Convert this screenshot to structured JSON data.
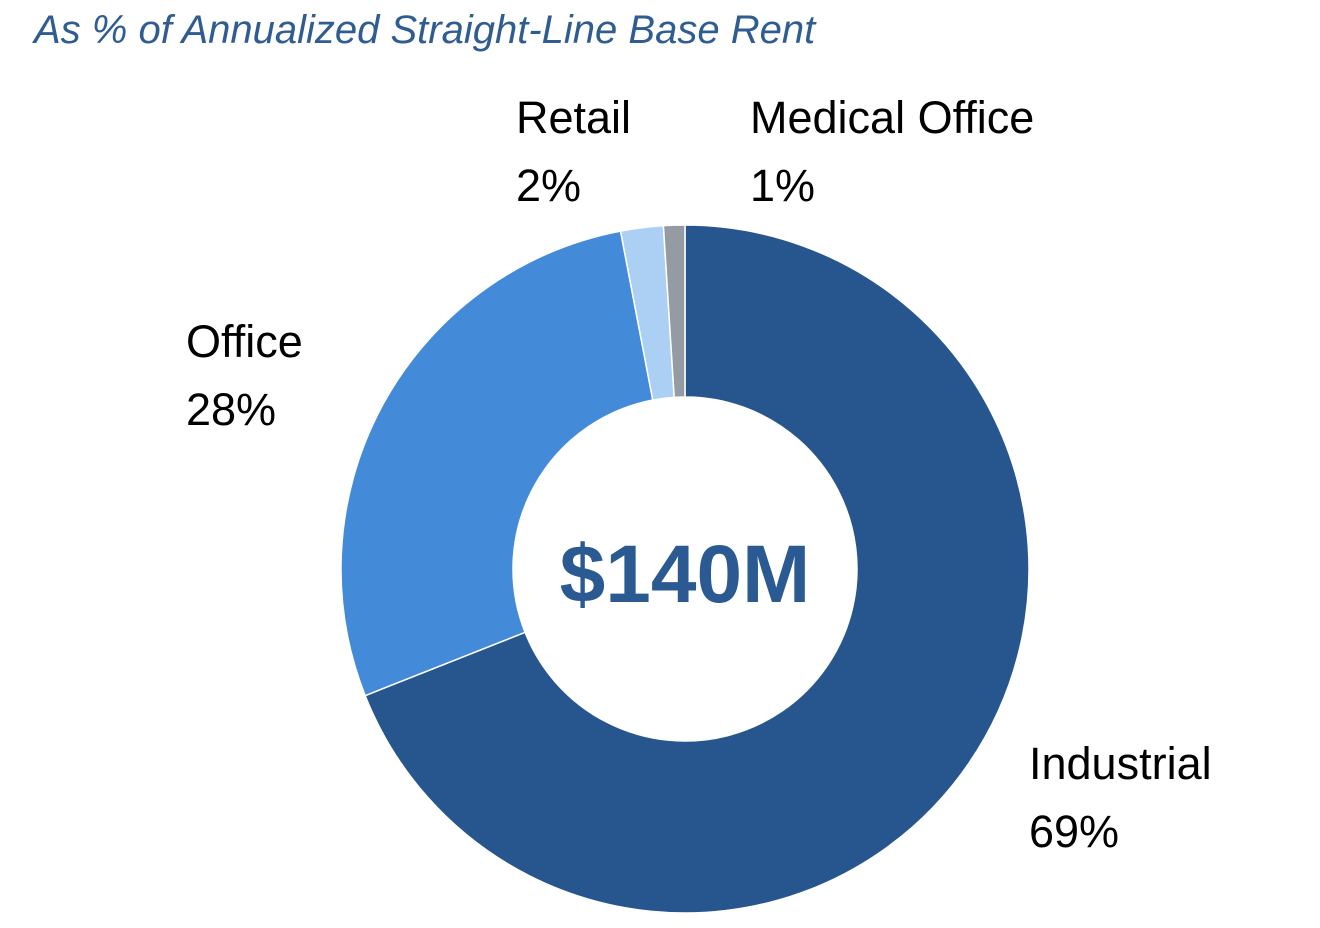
{
  "chart_data": {
    "type": "pie",
    "subtitle": "As % of Annualized Straight-Line Base Rent",
    "center_label": "$140M",
    "slices": [
      {
        "name": "Industrial",
        "percent_label": "69%",
        "value": 69,
        "color": "#27568f"
      },
      {
        "name": "Office",
        "percent_label": "28%",
        "value": 28,
        "color": "#438bd9"
      },
      {
        "name": "Retail",
        "percent_label": "2%",
        "value": 2,
        "color": "#abd0f3"
      },
      {
        "name": "Medical Office",
        "percent_label": "1%",
        "value": 1,
        "color": "#959ba2"
      }
    ]
  }
}
